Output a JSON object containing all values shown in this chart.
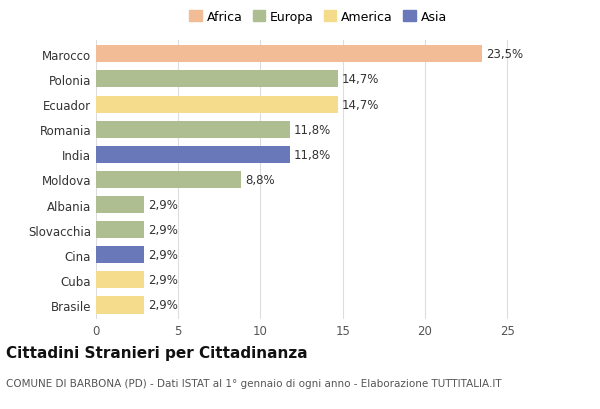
{
  "countries": [
    "Marocco",
    "Polonia",
    "Ecuador",
    "Romania",
    "India",
    "Moldova",
    "Albania",
    "Slovacchia",
    "Cina",
    "Cuba",
    "Brasile"
  ],
  "values": [
    23.5,
    14.7,
    14.7,
    11.8,
    11.8,
    8.8,
    2.9,
    2.9,
    2.9,
    2.9,
    2.9
  ],
  "labels": [
    "23,5%",
    "14,7%",
    "14,7%",
    "11,8%",
    "11,8%",
    "8,8%",
    "2,9%",
    "2,9%",
    "2,9%",
    "2,9%",
    "2,9%"
  ],
  "colors": [
    "#F2BC96",
    "#AEBE90",
    "#F5DC8C",
    "#AEBE90",
    "#6878B8",
    "#AEBE90",
    "#AEBE90",
    "#AEBE90",
    "#6878B8",
    "#F5DC8C",
    "#F5DC8C"
  ],
  "legend": [
    {
      "label": "Africa",
      "color": "#F2BC96"
    },
    {
      "label": "Europa",
      "color": "#AEBE90"
    },
    {
      "label": "America",
      "color": "#F5DC8C"
    },
    {
      "label": "Asia",
      "color": "#6878B8"
    }
  ],
  "xlim": [
    0,
    27
  ],
  "xticks": [
    0,
    5,
    10,
    15,
    20,
    25
  ],
  "title": "Cittadini Stranieri per Cittadinanza",
  "subtitle": "COMUNE DI BARBONA (PD) - Dati ISTAT al 1° gennaio di ogni anno - Elaborazione TUTTITALIA.IT",
  "background_color": "#ffffff",
  "bar_height": 0.68,
  "label_fontsize": 8.5,
  "ytick_fontsize": 8.5,
  "xtick_fontsize": 8.5,
  "title_fontsize": 11,
  "subtitle_fontsize": 7.5
}
